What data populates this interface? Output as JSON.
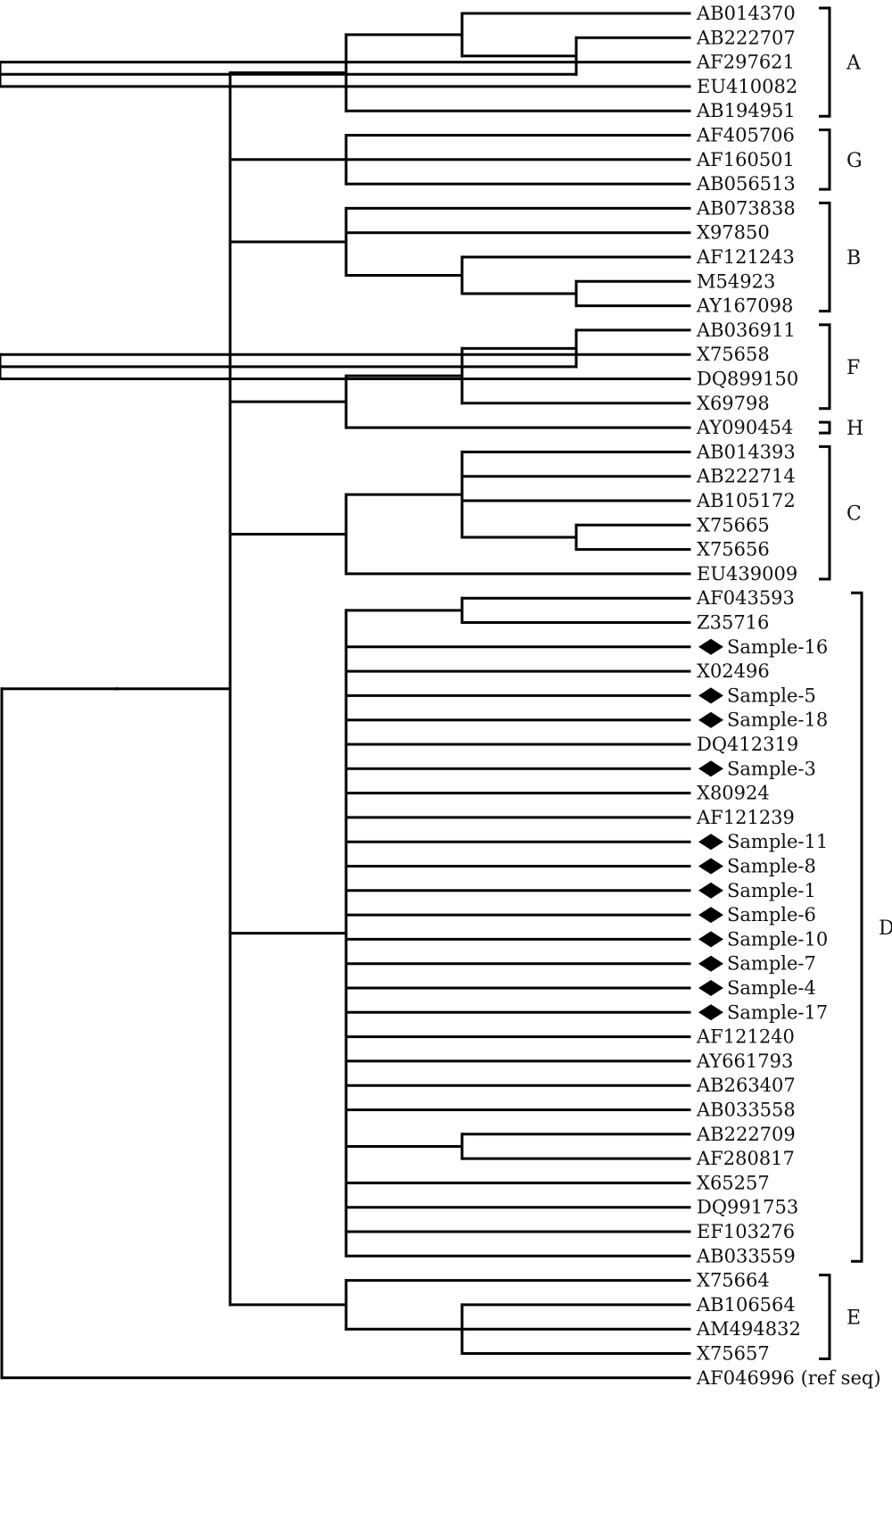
{
  "tree": {
    "leaves": [
      {
        "id": "AB014370",
        "label": "AB014370",
        "sample": false
      },
      {
        "id": "AB222707",
        "label": "AB222707",
        "sample": false
      },
      {
        "id": "AF297621",
        "label": "AF297621",
        "sample": false
      },
      {
        "id": "EU410082",
        "label": "EU410082",
        "sample": false
      },
      {
        "id": "AB194951",
        "label": "AB194951",
        "sample": false
      },
      {
        "id": "AF405706",
        "label": "AF405706",
        "sample": false
      },
      {
        "id": "AF160501",
        "label": "AF160501",
        "sample": false
      },
      {
        "id": "AB056513",
        "label": "AB056513",
        "sample": false
      },
      {
        "id": "AB073838",
        "label": "AB073838",
        "sample": false
      },
      {
        "id": "X97850",
        "label": "X97850",
        "sample": false
      },
      {
        "id": "AF121243",
        "label": "AF121243",
        "sample": false
      },
      {
        "id": "M54923",
        "label": "M54923",
        "sample": false
      },
      {
        "id": "AY167098",
        "label": "AY167098",
        "sample": false
      },
      {
        "id": "AB036911",
        "label": "AB036911",
        "sample": false
      },
      {
        "id": "X75658",
        "label": "X75658",
        "sample": false
      },
      {
        "id": "DQ899150",
        "label": "DQ899150",
        "sample": false
      },
      {
        "id": "X69798",
        "label": "X69798",
        "sample": false
      },
      {
        "id": "AY090454",
        "label": "AY090454",
        "sample": false
      },
      {
        "id": "AB014393",
        "label": "AB014393",
        "sample": false
      },
      {
        "id": "AB222714",
        "label": "AB222714",
        "sample": false
      },
      {
        "id": "AB105172",
        "label": "AB105172",
        "sample": false
      },
      {
        "id": "X75665",
        "label": "X75665",
        "sample": false
      },
      {
        "id": "X75656",
        "label": "X75656",
        "sample": false
      },
      {
        "id": "EU439009",
        "label": "EU439009",
        "sample": false
      },
      {
        "id": "AF043593",
        "label": "AF043593",
        "sample": false
      },
      {
        "id": "Z35716",
        "label": "Z35716",
        "sample": false
      },
      {
        "id": "Sample-16",
        "label": "Sample-16",
        "sample": true
      },
      {
        "id": "X02496",
        "label": "X02496",
        "sample": false
      },
      {
        "id": "Sample-5",
        "label": "Sample-5",
        "sample": true
      },
      {
        "id": "Sample-18",
        "label": "Sample-18",
        "sample": true
      },
      {
        "id": "DQ412319",
        "label": "DQ412319",
        "sample": false
      },
      {
        "id": "Sample-3",
        "label": "Sample-3",
        "sample": true
      },
      {
        "id": "X80924",
        "label": "X80924",
        "sample": false
      },
      {
        "id": "AF121239",
        "label": "AF121239",
        "sample": false
      },
      {
        "id": "Sample-11",
        "label": "Sample-11",
        "sample": true
      },
      {
        "id": "Sample-8",
        "label": "Sample-8",
        "sample": true
      },
      {
        "id": "Sample-1",
        "label": "Sample-1",
        "sample": true
      },
      {
        "id": "Sample-6",
        "label": "Sample-6",
        "sample": true
      },
      {
        "id": "Sample-10",
        "label": "Sample-10",
        "sample": true
      },
      {
        "id": "Sample-7",
        "label": "Sample-7",
        "sample": true
      },
      {
        "id": "Sample-4",
        "label": "Sample-4",
        "sample": true
      },
      {
        "id": "Sample-17",
        "label": "Sample-17",
        "sample": true
      },
      {
        "id": "AF121240",
        "label": "AF121240",
        "sample": false
      },
      {
        "id": "AY661793",
        "label": "AY661793",
        "sample": false
      },
      {
        "id": "AB263407",
        "label": "AB263407",
        "sample": false
      },
      {
        "id": "AB033558",
        "label": "AB033558",
        "sample": false
      },
      {
        "id": "AB222709",
        "label": "AB222709",
        "sample": false
      },
      {
        "id": "AF280817",
        "label": "AF280817",
        "sample": false
      },
      {
        "id": "X65257",
        "label": "X65257",
        "sample": false
      },
      {
        "id": "DQ991753",
        "label": "DQ991753",
        "sample": false
      },
      {
        "id": "EF103276",
        "label": "EF103276",
        "sample": false
      },
      {
        "id": "AB033559",
        "label": "AB033559",
        "sample": false
      },
      {
        "id": "X75664",
        "label": "X75664",
        "sample": false
      },
      {
        "id": "AB106564",
        "label": "AB106564",
        "sample": false
      },
      {
        "id": "AM494832",
        "label": "AM494832",
        "sample": false
      },
      {
        "id": "X75657",
        "label": "X75657",
        "sample": false
      },
      {
        "id": "AF046996",
        "label": "AF046996 (ref seq)",
        "sample": false
      }
    ],
    "root": {
      "children": [
        {
          "children": [
            {
              "children": [
                {
                  "children": [
                    {
                      "children": [
                        {
                          "leaf": "AB014370"
                        },
                        {
                          "children": [
                            {
                              "leaf": "AB222707"
                            },
                            {
                              "children": [
                                {
                                  "leaf": "AF297621"
                                },
                                {
                                  "leaf": "EU410082"
                                }
                              ]
                            }
                          ]
                        }
                      ]
                    },
                    {
                      "leaf": "AB194951"
                    }
                  ]
                },
                {
                  "children": [
                    {
                      "leaf": "AF405706"
                    },
                    {
                      "leaf": "AF160501"
                    },
                    {
                      "leaf": "AB056513"
                    }
                  ]
                },
                {
                  "children": [
                    {
                      "leaf": "AB073838"
                    },
                    {
                      "leaf": "X97850"
                    },
                    {
                      "children": [
                        {
                          "leaf": "AF121243"
                        },
                        {
                          "children": [
                            {
                              "leaf": "M54923"
                            },
                            {
                              "leaf": "AY167098"
                            }
                          ]
                        }
                      ]
                    }
                  ]
                },
                {
                  "children": [
                    {
                      "children": [
                        {
                          "children": [
                            {
                              "leaf": "AB036911"
                            },
                            {
                              "children": [
                                {
                                  "leaf": "X75658"
                                },
                                {
                                  "leaf": "DQ899150"
                                }
                              ]
                            }
                          ]
                        },
                        {
                          "leaf": "X69798"
                        }
                      ]
                    },
                    {
                      "leaf": "AY090454"
                    }
                  ]
                },
                {
                  "children": [
                    {
                      "children": [
                        {
                          "leaf": "AB014393"
                        },
                        {
                          "leaf": "AB222714"
                        },
                        {
                          "leaf": "AB105172"
                        },
                        {
                          "children": [
                            {
                              "leaf": "X75665"
                            },
                            {
                              "leaf": "X75656"
                            }
                          ]
                        }
                      ]
                    },
                    {
                      "leaf": "EU439009"
                    }
                  ]
                },
                {
                  "children": [
                    {
                      "children": [
                        {
                          "leaf": "AF043593"
                        },
                        {
                          "leaf": "Z35716"
                        }
                      ]
                    },
                    {
                      "leaf": "Sample-16"
                    },
                    {
                      "leaf": "X02496"
                    },
                    {
                      "leaf": "Sample-5"
                    },
                    {
                      "leaf": "Sample-18"
                    },
                    {
                      "leaf": "DQ412319"
                    },
                    {
                      "leaf": "Sample-3"
                    },
                    {
                      "leaf": "X80924"
                    },
                    {
                      "leaf": "AF121239"
                    },
                    {
                      "leaf": "Sample-11"
                    },
                    {
                      "leaf": "Sample-8"
                    },
                    {
                      "leaf": "Sample-1"
                    },
                    {
                      "leaf": "Sample-6"
                    },
                    {
                      "leaf": "Sample-10"
                    },
                    {
                      "leaf": "Sample-7"
                    },
                    {
                      "leaf": "Sample-4"
                    },
                    {
                      "leaf": "Sample-17"
                    },
                    {
                      "leaf": "AF121240"
                    },
                    {
                      "leaf": "AY661793"
                    },
                    {
                      "leaf": "AB263407"
                    },
                    {
                      "leaf": "AB033558"
                    },
                    {
                      "children": [
                        {
                          "leaf": "AB222709"
                        },
                        {
                          "leaf": "AF280817"
                        }
                      ]
                    },
                    {
                      "leaf": "X65257"
                    },
                    {
                      "leaf": "DQ991753"
                    },
                    {
                      "leaf": "EF103276"
                    },
                    {
                      "leaf": "AB033559"
                    }
                  ]
                },
                {
                  "children": [
                    {
                      "leaf": "X75664"
                    },
                    {
                      "children": [
                        {
                          "leaf": "AB106564"
                        },
                        {
                          "leaf": "AM494832"
                        },
                        {
                          "leaf": "X75657"
                        }
                      ]
                    }
                  ]
                }
              ]
            }
          ]
        },
        {
          "leaf": "AF046996"
        }
      ]
    }
  },
  "groups": [
    {
      "label": "A",
      "from": "AB014370",
      "to": "AB194951"
    },
    {
      "label": "G",
      "from": "AF405706",
      "to": "AB056513"
    },
    {
      "label": "B",
      "from": "AB073838",
      "to": "AY167098"
    },
    {
      "label": "F",
      "from": "AB036911",
      "to": "X69798"
    },
    {
      "label": "H",
      "from": "AY090454",
      "to": "AY090454"
    },
    {
      "label": "C",
      "from": "AB014393",
      "to": "EU439009"
    },
    {
      "label": "D",
      "from": "AF043593",
      "to": "AB033559"
    },
    {
      "label": "E",
      "from": "X75664",
      "to": "X75657"
    }
  ]
}
